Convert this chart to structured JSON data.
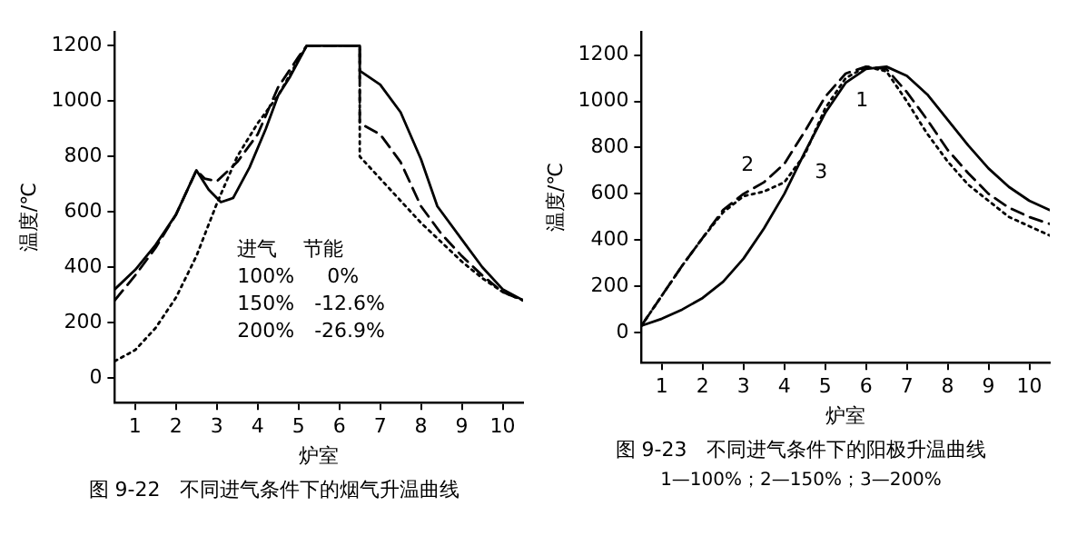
{
  "chart_data": [
    {
      "type": "line",
      "title": "图 9-22　不同进气条件下的烟气升温曲线",
      "xlabel": "炉室",
      "ylabel": "温度/℃",
      "xlim": [
        0.5,
        10.5
      ],
      "xticks": [
        1,
        2,
        3,
        4,
        5,
        6,
        7,
        8,
        9,
        10
      ],
      "ylim": [
        -90,
        1250
      ],
      "yticks": [
        0,
        200,
        400,
        600,
        800,
        1000,
        1200
      ],
      "grid": false,
      "legend": false,
      "marker": "none",
      "annotations": [
        "进气　 节能",
        "100%　  0%",
        "150%　-12.6%",
        "200%　-26.9%"
      ],
      "series": [
        {
          "color": "#000000",
          "line_style": "solid",
          "x": [
            0.5,
            1,
            1.5,
            2,
            2.5,
            2.8,
            3.1,
            3.4,
            3.8,
            4.2,
            4.5,
            4.8,
            5.2,
            6.5,
            6.5,
            7,
            7.5,
            8,
            8.4,
            9,
            9.5,
            10,
            10.5
          ],
          "values": [
            320,
            390,
            480,
            590,
            750,
            680,
            635,
            650,
            760,
            900,
            1020,
            1090,
            1200,
            1200,
            1110,
            1060,
            960,
            790,
            620,
            500,
            400,
            320,
            280
          ]
        },
        {
          "color": "#000000",
          "line_style": "dashed",
          "x": [
            0.5,
            1,
            1.5,
            2,
            2.5,
            2.7,
            3,
            3.5,
            4,
            4.5,
            5,
            5.2,
            6.5,
            6.5,
            7,
            7.5,
            8,
            8.5,
            9,
            9.5,
            10,
            10.5
          ],
          "values": [
            280,
            370,
            470,
            590,
            750,
            720,
            710,
            780,
            880,
            1050,
            1160,
            1200,
            1200,
            920,
            880,
            780,
            620,
            520,
            440,
            370,
            310,
            280
          ]
        },
        {
          "color": "#000000",
          "line_style": "dotted",
          "x": [
            0.5,
            1,
            1.5,
            2,
            2.5,
            3,
            3.5,
            4,
            4.5,
            5,
            5.2,
            6.5,
            6.5,
            7,
            7.5,
            8,
            8.5,
            9,
            9.5,
            10,
            10.5
          ],
          "values": [
            60,
            100,
            180,
            290,
            440,
            630,
            800,
            920,
            1020,
            1150,
            1200,
            1200,
            800,
            720,
            640,
            560,
            490,
            420,
            360,
            310,
            280
          ]
        }
      ]
    },
    {
      "type": "line",
      "title": "图 9-23　不同进气条件下的阳极升温曲线",
      "xlabel": "炉室",
      "ylabel": "温度/℃",
      "xlim": [
        0.5,
        10.5
      ],
      "xticks": [
        1,
        2,
        3,
        4,
        5,
        6,
        7,
        8,
        9,
        10
      ],
      "ylim": [
        -130,
        1300
      ],
      "yticks": [
        0,
        200,
        400,
        600,
        800,
        1000,
        1200
      ],
      "grid": false,
      "legend": false,
      "marker": "none",
      "annotations": [
        "1—100%；2—150%；3—200%",
        {
          "text": "1",
          "x": 5.5,
          "y": 1080
        },
        {
          "text": "2",
          "x": 3.5,
          "y": 650
        },
        {
          "text": "3",
          "x": 4.5,
          "y": 770
        }
      ],
      "series": [
        {
          "color": "#000000",
          "line_style": "solid",
          "x": [
            0.5,
            1,
            1.5,
            2,
            2.5,
            3,
            3.5,
            4,
            4.5,
            5,
            5.5,
            6,
            6.5,
            7,
            7.5,
            8,
            8.5,
            9,
            9.5,
            10,
            10.5
          ],
          "values": [
            30,
            60,
            100,
            150,
            220,
            320,
            450,
            600,
            780,
            950,
            1080,
            1140,
            1150,
            1110,
            1030,
            920,
            810,
            710,
            630,
            570,
            530
          ]
        },
        {
          "color": "#000000",
          "line_style": "dashed",
          "x": [
            0.5,
            1,
            1.5,
            2,
            2.5,
            3,
            3.5,
            4,
            4.5,
            5,
            5.5,
            6,
            6.5,
            7,
            7.5,
            8,
            8.5,
            9,
            9.5,
            10,
            10.5
          ],
          "values": [
            30,
            160,
            290,
            410,
            530,
            600,
            650,
            730,
            870,
            1020,
            1120,
            1150,
            1140,
            1040,
            920,
            790,
            690,
            600,
            540,
            500,
            470
          ]
        },
        {
          "color": "#000000",
          "line_style": "dotted",
          "x": [
            0.5,
            1,
            1.5,
            2,
            2.5,
            3,
            3.5,
            4,
            4.5,
            5,
            5.5,
            6,
            6.5,
            7,
            7.5,
            8,
            8.5,
            9,
            9.5,
            10,
            10.5
          ],
          "values": [
            30,
            160,
            290,
            410,
            520,
            590,
            610,
            650,
            770,
            970,
            1100,
            1150,
            1130,
            1000,
            860,
            740,
            640,
            570,
            500,
            460,
            420
          ]
        }
      ]
    }
  ]
}
